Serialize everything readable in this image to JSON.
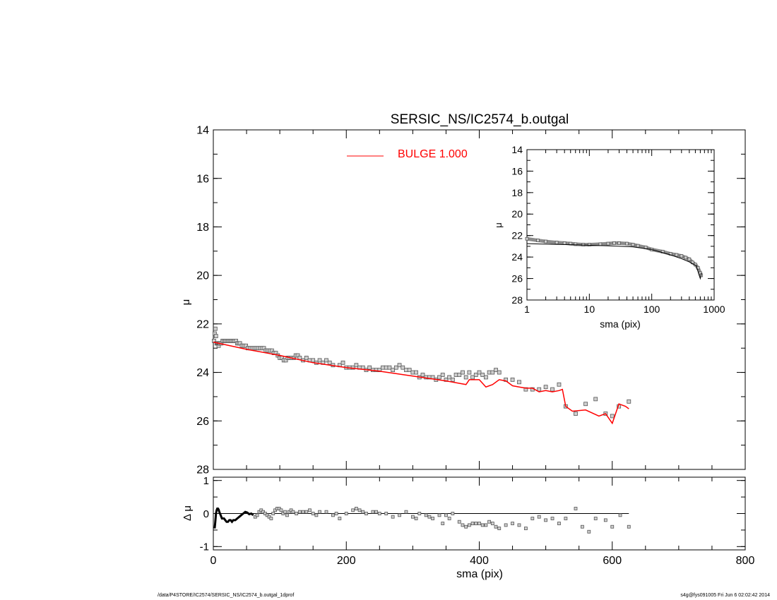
{
  "footer": {
    "left": "/data/P4STORE/IC2574/SERSIC_NS/IC2574_b.outgal_1dprof",
    "right": "s4g@fys091005  Fri Jun  6 02:02:42 2014"
  },
  "colors": {
    "axes": "#000000",
    "model": "#ff0000",
    "points": "#555555"
  },
  "chart_data": [
    {
      "id": "main",
      "type": "scatter",
      "title": "SERSIC_NS/IC2574_b.outgal",
      "xlabel": "",
      "ylabel": "μ",
      "xlim": [
        0,
        800
      ],
      "ylim": [
        28,
        14
      ],
      "yticks": [
        "14",
        "16",
        "18",
        "20",
        "22",
        "24",
        "26",
        "28"
      ],
      "legend": {
        "label": "BULGE  1.000",
        "position": "top-center",
        "color": "#ff0000"
      },
      "series": [
        {
          "name": "",
          "kind": "points",
          "x": [
            1,
            2,
            3,
            4,
            5,
            6,
            7,
            8,
            9,
            10,
            12,
            14,
            16,
            18,
            20,
            22,
            24,
            26,
            28,
            30,
            32,
            34,
            36,
            38,
            40,
            43,
            46,
            49,
            52,
            55,
            58,
            61,
            64,
            67,
            70,
            73,
            76,
            79,
            82,
            85,
            88,
            91,
            94,
            97,
            100,
            103,
            106,
            109,
            112,
            115,
            118,
            121,
            124,
            127,
            130,
            135,
            140,
            145,
            150,
            155,
            160,
            165,
            170,
            175,
            180,
            190,
            195,
            200,
            205,
            210,
            215,
            220,
            225,
            230,
            235,
            240,
            245,
            250,
            255,
            260,
            265,
            270,
            275,
            280,
            285,
            290,
            295,
            300,
            305,
            310,
            315,
            320,
            325,
            330,
            335,
            340,
            345,
            350,
            355,
            360,
            365,
            370,
            375,
            380,
            385,
            390,
            395,
            400,
            405,
            410,
            415,
            420,
            425,
            430,
            440,
            450,
            460,
            470,
            480,
            490,
            500,
            510,
            520,
            530,
            545,
            560,
            575,
            590,
            600,
            610,
            625
          ],
          "y": [
            22.7,
            22.4,
            22.2,
            22.5,
            22.8,
            22.8,
            22.8,
            22.9,
            22.8,
            22.8,
            22.8,
            22.7,
            22.7,
            22.7,
            22.7,
            22.7,
            22.7,
            22.7,
            22.7,
            22.7,
            22.7,
            22.7,
            22.8,
            22.8,
            22.8,
            22.9,
            22.9,
            22.9,
            23.0,
            23.0,
            23.0,
            23.0,
            23.0,
            23.0,
            23.0,
            23.0,
            23.0,
            23.1,
            23.1,
            23.1,
            23.1,
            23.2,
            23.2,
            23.3,
            23.4,
            23.4,
            23.5,
            23.5,
            23.4,
            23.4,
            23.4,
            23.4,
            23.3,
            23.3,
            23.4,
            23.5,
            23.4,
            23.5,
            23.5,
            23.6,
            23.5,
            23.6,
            23.5,
            23.6,
            23.7,
            23.7,
            23.6,
            23.8,
            23.8,
            23.8,
            23.7,
            23.8,
            23.8,
            23.9,
            23.8,
            23.9,
            23.9,
            23.9,
            23.8,
            23.8,
            23.8,
            23.9,
            23.8,
            23.7,
            23.8,
            23.9,
            23.9,
            24.0,
            24.0,
            24.2,
            24.1,
            24.2,
            24.2,
            24.2,
            24.3,
            24.2,
            24.1,
            24.3,
            24.2,
            24.3,
            24.1,
            24.1,
            24.0,
            24.2,
            24.0,
            24.2,
            24.1,
            24.0,
            24.1,
            24.2,
            24.0,
            24.0,
            23.9,
            24.0,
            24.3,
            24.3,
            24.4,
            24.7,
            24.7,
            24.7,
            24.6,
            24.7,
            24.5,
            25.4,
            25.7,
            25.3,
            25.1,
            25.7,
            25.8,
            25.4,
            25.2
          ]
        },
        {
          "name": "BULGE  1.000",
          "kind": "line",
          "x": [
            0,
            50,
            100,
            150,
            200,
            250,
            300,
            350,
            380,
            385,
            400,
            410,
            420,
            430,
            440,
            450,
            460,
            470,
            480,
            490,
            500,
            510,
            520,
            525,
            530,
            540,
            560,
            580,
            590,
            600,
            610,
            620,
            625
          ],
          "y": [
            22.75,
            23.05,
            23.3,
            23.6,
            23.8,
            23.95,
            24.15,
            24.35,
            24.5,
            24.3,
            24.3,
            24.6,
            24.5,
            24.3,
            24.35,
            24.55,
            24.6,
            24.65,
            24.65,
            24.8,
            24.75,
            24.8,
            24.75,
            24.7,
            25.4,
            25.6,
            25.55,
            25.8,
            25.7,
            26.1,
            25.3,
            25.4,
            25.5
          ]
        }
      ]
    },
    {
      "id": "residual",
      "type": "scatter",
      "title": "",
      "xlabel": "sma (pix)",
      "ylabel": "Δ μ",
      "xlim": [
        0,
        800
      ],
      "ylim": [
        -1.1,
        1.1
      ],
      "xticks": [
        "0",
        "200",
        "400",
        "600",
        "800"
      ],
      "yticks": [
        "-1",
        "0",
        "1"
      ],
      "reference_line": 0,
      "series": [
        {
          "name": "",
          "kind": "points",
          "x": [
            2,
            3,
            4,
            5,
            6,
            7,
            8,
            9,
            10,
            11,
            12,
            13,
            14,
            16,
            18,
            20,
            22,
            24,
            26,
            28,
            30,
            33,
            36,
            39,
            42,
            45,
            48,
            51,
            54,
            57,
            60,
            63,
            66,
            69,
            72,
            75,
            78,
            81,
            84,
            87,
            90,
            93,
            96,
            99,
            102,
            105,
            108,
            111,
            114,
            117,
            120,
            125,
            130,
            135,
            140,
            145,
            150,
            155,
            160,
            170,
            180,
            185,
            190,
            200,
            210,
            215,
            220,
            225,
            230,
            240,
            245,
            250,
            260,
            270,
            280,
            290,
            300,
            305,
            310,
            320,
            325,
            330,
            340,
            345,
            350,
            355,
            360,
            370,
            375,
            380,
            385,
            390,
            395,
            400,
            405,
            410,
            415,
            420,
            425,
            430,
            440,
            450,
            460,
            470,
            480,
            490,
            500,
            510,
            520,
            530,
            545,
            555,
            565,
            575,
            590,
            600,
            612,
            625
          ],
          "y": [
            -0.45,
            -0.25,
            0.0,
            0.1,
            0.15,
            0.15,
            0.12,
            0.05,
            0.0,
            -0.05,
            -0.1,
            -0.15,
            -0.15,
            -0.15,
            -0.2,
            -0.25,
            -0.25,
            -0.2,
            -0.2,
            -0.25,
            -0.2,
            -0.2,
            -0.15,
            -0.1,
            -0.05,
            0.0,
            0.05,
            0.03,
            -0.02,
            0.0,
            -0.05,
            -0.1,
            -0.05,
            0.05,
            0.1,
            0.05,
            0.0,
            -0.05,
            -0.1,
            -0.15,
            0.0,
            0.1,
            0.15,
            0.15,
            0.1,
            0.0,
            0.05,
            -0.05,
            0.05,
            0.1,
            0.05,
            0.0,
            0.05,
            0.05,
            0.05,
            0.1,
            0.0,
            -0.05,
            0.05,
            0.05,
            -0.05,
            0.0,
            -0.15,
            0.0,
            0.1,
            0.15,
            0.1,
            0.05,
            0.0,
            0.05,
            0.05,
            0.0,
            0.0,
            -0.1,
            -0.05,
            0.05,
            -0.1,
            -0.15,
            0.0,
            -0.05,
            -0.1,
            -0.15,
            -0.05,
            -0.3,
            -0.05,
            -0.15,
            0.0,
            -0.25,
            -0.35,
            -0.4,
            -0.35,
            -0.3,
            -0.3,
            -0.3,
            -0.35,
            -0.35,
            -0.25,
            -0.3,
            -0.4,
            -0.45,
            -0.35,
            -0.3,
            -0.35,
            -0.45,
            -0.15,
            -0.1,
            -0.2,
            -0.15,
            -0.3,
            -0.15,
            0.15,
            -0.4,
            -0.55,
            -0.15,
            -0.2,
            -0.4,
            -0.05,
            -0.4
          ]
        }
      ]
    },
    {
      "id": "inset",
      "type": "line",
      "title": "",
      "xlabel": "sma (pix)",
      "ylabel": "μ",
      "xscale": "log",
      "xlim": [
        1,
        1000
      ],
      "ylim": [
        28,
        14
      ],
      "xticks": [
        "1",
        "10",
        "100",
        "1000"
      ],
      "yticks": [
        "14",
        "16",
        "18",
        "20",
        "22",
        "24",
        "26",
        "28"
      ],
      "series": [
        {
          "name": "",
          "kind": "band",
          "x": [
            1,
            1.5,
            2,
            3,
            4,
            5,
            6,
            8,
            10,
            15,
            20,
            25,
            30,
            40,
            50,
            60,
            80,
            100,
            150,
            200,
            250,
            300,
            350,
            400,
            450,
            500,
            550,
            600,
            620
          ],
          "y": [
            22.3,
            22.45,
            22.55,
            22.65,
            22.7,
            22.75,
            22.8,
            22.85,
            22.85,
            22.8,
            22.75,
            22.7,
            22.7,
            22.75,
            22.85,
            22.95,
            23.1,
            23.3,
            23.5,
            23.7,
            23.8,
            23.9,
            24.05,
            24.2,
            24.5,
            24.7,
            25.0,
            25.5,
            25.7
          ]
        },
        {
          "name": "",
          "kind": "line",
          "x": [
            1,
            2,
            5,
            10,
            20,
            30,
            50,
            100,
            200,
            300,
            400,
            500,
            520,
            560,
            600,
            625
          ],
          "y": [
            22.75,
            22.8,
            22.85,
            22.9,
            22.95,
            23.0,
            23.05,
            23.3,
            23.8,
            24.15,
            24.45,
            24.75,
            24.8,
            25.5,
            26.0,
            25.5
          ]
        }
      ]
    }
  ]
}
